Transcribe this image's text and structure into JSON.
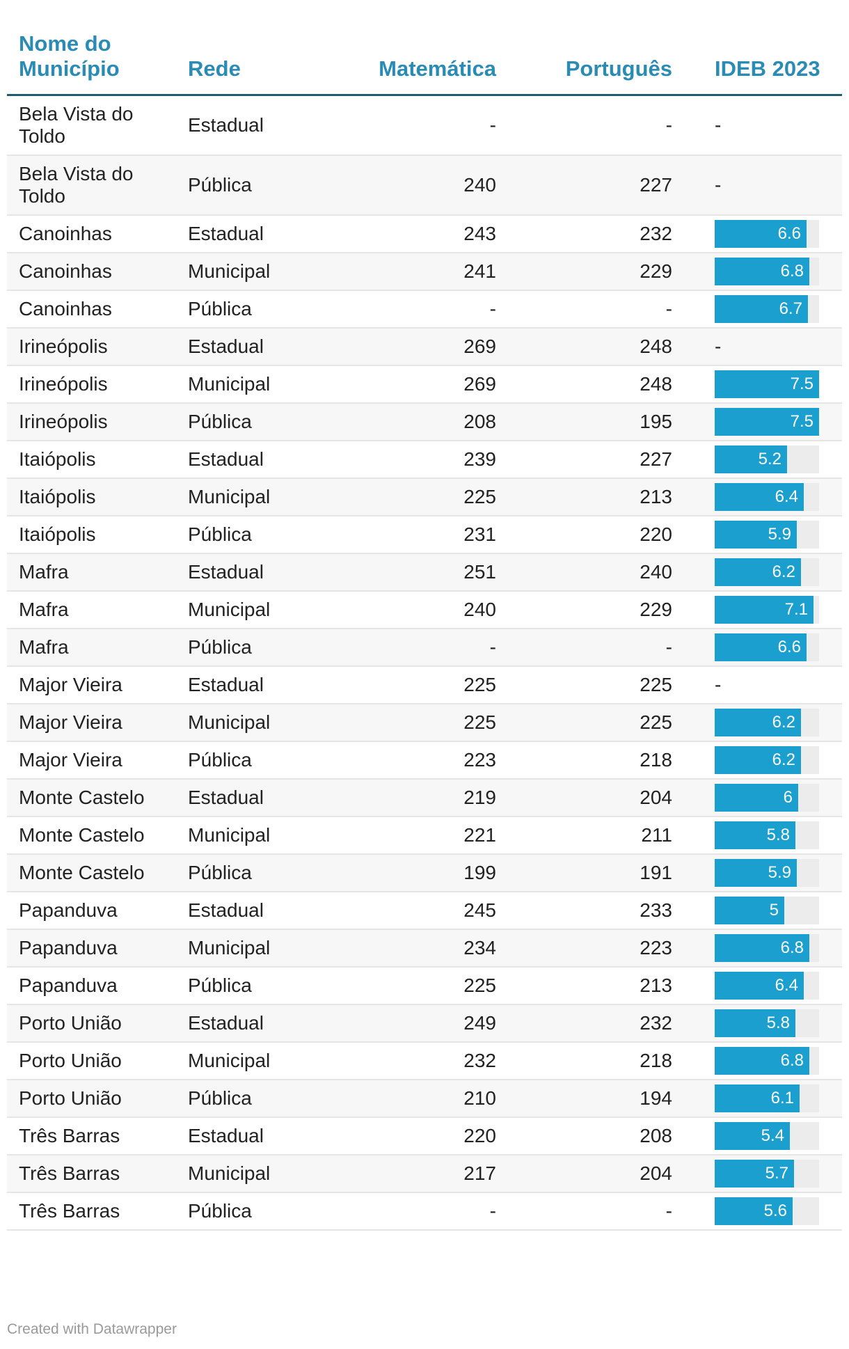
{
  "headers": {
    "name": "Nome do Município",
    "rede": "Rede",
    "mat": "Matemática",
    "por": "Português",
    "ideb": "IDEB 2023"
  },
  "footer": "Created with Datawrapper",
  "colors": {
    "header_text": "#2a8bb5",
    "bar": "#1b9fce",
    "bar_track": "#ececec",
    "header_rule": "#1e5a72"
  },
  "chart_data": {
    "type": "table",
    "columns": [
      "Nome do Município",
      "Rede",
      "Matemática",
      "Português",
      "IDEB 2023"
    ],
    "ideb_bar_max": 7.5,
    "rows": [
      {
        "name": "Bela Vista do Toldo",
        "rede": "Estadual",
        "mat": "-",
        "por": "-",
        "ideb": null
      },
      {
        "name": "Bela Vista do Toldo",
        "rede": "Pública",
        "mat": "240",
        "por": "227",
        "ideb": null
      },
      {
        "name": "Canoinhas",
        "rede": "Estadual",
        "mat": "243",
        "por": "232",
        "ideb": 6.6
      },
      {
        "name": "Canoinhas",
        "rede": "Municipal",
        "mat": "241",
        "por": "229",
        "ideb": 6.8
      },
      {
        "name": "Canoinhas",
        "rede": "Pública",
        "mat": "-",
        "por": "-",
        "ideb": 6.7
      },
      {
        "name": "Irineópolis",
        "rede": "Estadual",
        "mat": "269",
        "por": "248",
        "ideb": null
      },
      {
        "name": "Irineópolis",
        "rede": "Municipal",
        "mat": "269",
        "por": "248",
        "ideb": 7.5
      },
      {
        "name": "Irineópolis",
        "rede": "Pública",
        "mat": "208",
        "por": "195",
        "ideb": 7.5
      },
      {
        "name": "Itaiópolis",
        "rede": "Estadual",
        "mat": "239",
        "por": "227",
        "ideb": 5.2
      },
      {
        "name": "Itaiópolis",
        "rede": "Municipal",
        "mat": "225",
        "por": "213",
        "ideb": 6.4
      },
      {
        "name": "Itaiópolis",
        "rede": "Pública",
        "mat": "231",
        "por": "220",
        "ideb": 5.9
      },
      {
        "name": "Mafra",
        "rede": "Estadual",
        "mat": "251",
        "por": "240",
        "ideb": 6.2
      },
      {
        "name": "Mafra",
        "rede": "Municipal",
        "mat": "240",
        "por": "229",
        "ideb": 7.1
      },
      {
        "name": "Mafra",
        "rede": "Pública",
        "mat": "-",
        "por": "-",
        "ideb": 6.6
      },
      {
        "name": "Major Vieira",
        "rede": "Estadual",
        "mat": "225",
        "por": "225",
        "ideb": null
      },
      {
        "name": "Major Vieira",
        "rede": "Municipal",
        "mat": "225",
        "por": "225",
        "ideb": 6.2
      },
      {
        "name": "Major Vieira",
        "rede": "Pública",
        "mat": "223",
        "por": "218",
        "ideb": 6.2
      },
      {
        "name": "Monte Castelo",
        "rede": "Estadual",
        "mat": "219",
        "por": "204",
        "ideb": 6
      },
      {
        "name": "Monte Castelo",
        "rede": "Municipal",
        "mat": "221",
        "por": "211",
        "ideb": 5.8
      },
      {
        "name": "Monte Castelo",
        "rede": "Pública",
        "mat": "199",
        "por": "191",
        "ideb": 5.9
      },
      {
        "name": "Papanduva",
        "rede": "Estadual",
        "mat": "245",
        "por": "233",
        "ideb": 5
      },
      {
        "name": "Papanduva",
        "rede": "Municipal",
        "mat": "234",
        "por": "223",
        "ideb": 6.8
      },
      {
        "name": "Papanduva",
        "rede": "Pública",
        "mat": "225",
        "por": "213",
        "ideb": 6.4
      },
      {
        "name": "Porto União",
        "rede": "Estadual",
        "mat": "249",
        "por": "232",
        "ideb": 5.8
      },
      {
        "name": "Porto União",
        "rede": "Municipal",
        "mat": "232",
        "por": "218",
        "ideb": 6.8
      },
      {
        "name": "Porto União",
        "rede": "Pública",
        "mat": "210",
        "por": "194",
        "ideb": 6.1
      },
      {
        "name": "Três Barras",
        "rede": "Estadual",
        "mat": "220",
        "por": "208",
        "ideb": 5.4
      },
      {
        "name": "Três Barras",
        "rede": "Municipal",
        "mat": "217",
        "por": "204",
        "ideb": 5.7
      },
      {
        "name": "Três Barras",
        "rede": "Pública",
        "mat": "-",
        "por": "-",
        "ideb": 5.6
      }
    ]
  }
}
